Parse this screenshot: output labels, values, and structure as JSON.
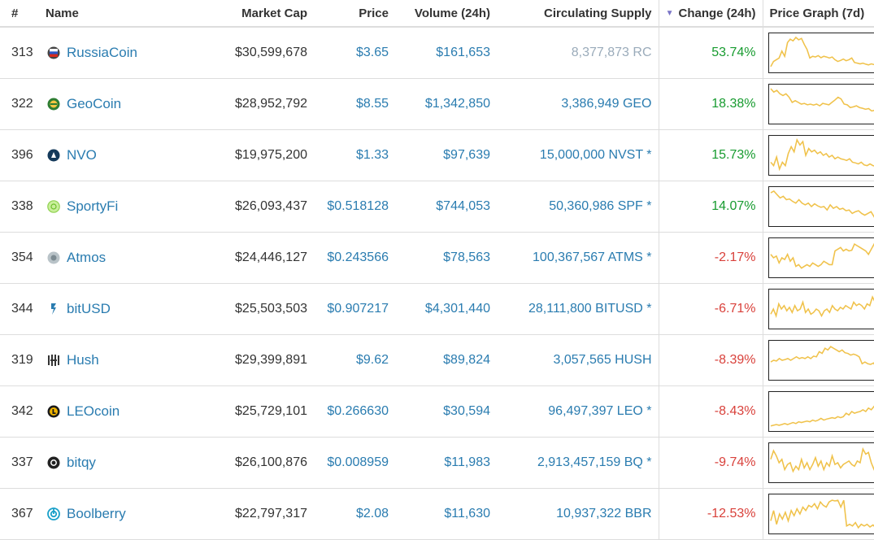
{
  "headers": {
    "rank": "#",
    "name": "Name",
    "market_cap": "Market Cap",
    "price": "Price",
    "volume": "Volume (24h)",
    "supply": "Circulating Supply",
    "change": "Change (24h)",
    "graph": "Price Graph (7d)"
  },
  "colors": {
    "link": "#2a7cb0",
    "positive": "#179b2f",
    "negative": "#d9413b",
    "sparkline": "#f0c24b"
  },
  "rows": [
    {
      "rank": "313",
      "name": "RussiaCoin",
      "icon": "russiacoin-icon",
      "market_cap": "$30,599,678",
      "price": "$3.65",
      "volume": "$161,653",
      "supply": "8,377,873 RC",
      "change": "53.74%",
      "spark": [
        0.1,
        0.25,
        0.3,
        0.35,
        0.55,
        0.4,
        0.8,
        0.9,
        0.85,
        0.95,
        0.88,
        0.92,
        0.75,
        0.6,
        0.35,
        0.4,
        0.38,
        0.42,
        0.36,
        0.4,
        0.38,
        0.35,
        0.38,
        0.3,
        0.25,
        0.28,
        0.32,
        0.27,
        0.3,
        0.35,
        0.22,
        0.2,
        0.18,
        0.2,
        0.17,
        0.15,
        0.18,
        0.16,
        0.15,
        0.17,
        0.14,
        0.15,
        0.13,
        0.15,
        0.17,
        0.2,
        0.3
      ]
    },
    {
      "rank": "322",
      "name": "GeoCoin",
      "icon": "geocoin-icon",
      "market_cap": "$28,952,792",
      "price": "$8.55",
      "volume": "$1,342,850",
      "supply": "3,386,949 GEO",
      "change": "18.38%",
      "spark": [
        0.95,
        0.85,
        0.9,
        0.8,
        0.75,
        0.8,
        0.7,
        0.55,
        0.6,
        0.55,
        0.5,
        0.52,
        0.48,
        0.5,
        0.47,
        0.5,
        0.45,
        0.52,
        0.5,
        0.48,
        0.55,
        0.62,
        0.7,
        0.65,
        0.5,
        0.48,
        0.4,
        0.42,
        0.45,
        0.4,
        0.38,
        0.35,
        0.37,
        0.3,
        0.32,
        0.28,
        0.25,
        0.3,
        0.2,
        0.22,
        0.05,
        0.08,
        0.3
      ]
    },
    {
      "rank": "396",
      "name": "NVO",
      "icon": "nvo-icon",
      "market_cap": "$19,975,200",
      "price": "$1.33",
      "volume": "$97,639",
      "supply": "15,000,000 NVST *",
      "change": "15.73%",
      "spark": [
        0.3,
        0.2,
        0.45,
        0.1,
        0.3,
        0.2,
        0.55,
        0.75,
        0.6,
        0.95,
        0.8,
        0.9,
        0.5,
        0.7,
        0.6,
        0.65,
        0.55,
        0.6,
        0.5,
        0.55,
        0.45,
        0.5,
        0.4,
        0.45,
        0.4,
        0.38,
        0.35,
        0.4,
        0.3,
        0.28,
        0.25,
        0.3,
        0.22,
        0.2,
        0.25,
        0.2,
        0.18,
        0.22,
        0.25,
        0.2,
        0.15,
        0.2,
        0.22,
        0.18,
        0.2
      ]
    },
    {
      "rank": "338",
      "name": "SportyFi",
      "icon": "sportyfi-icon",
      "market_cap": "$26,093,437",
      "price": "$0.518128",
      "volume": "$744,053",
      "supply": "50,360,986 SPF *",
      "change": "14.07%",
      "spark": [
        0.9,
        0.95,
        0.85,
        0.75,
        0.8,
        0.7,
        0.72,
        0.65,
        0.6,
        0.7,
        0.6,
        0.55,
        0.6,
        0.5,
        0.58,
        0.52,
        0.48,
        0.5,
        0.4,
        0.55,
        0.45,
        0.5,
        0.42,
        0.45,
        0.38,
        0.4,
        0.3,
        0.35,
        0.38,
        0.3,
        0.25,
        0.3,
        0.35,
        0.2,
        0.25,
        0.28,
        0.05,
        0.3,
        0.2,
        0.3,
        0.25,
        0.28
      ]
    },
    {
      "rank": "354",
      "name": "Atmos",
      "icon": "atmos-icon",
      "market_cap": "$24,446,127",
      "price": "$0.243566",
      "volume": "$78,563",
      "supply": "100,367,567 ATMS *",
      "change": "-2.17%",
      "spark": [
        0.6,
        0.5,
        0.55,
        0.35,
        0.5,
        0.45,
        0.6,
        0.4,
        0.5,
        0.25,
        0.3,
        0.2,
        0.25,
        0.3,
        0.25,
        0.35,
        0.3,
        0.25,
        0.3,
        0.4,
        0.35,
        0.3,
        0.3,
        0.7,
        0.75,
        0.8,
        0.7,
        0.75,
        0.7,
        0.72,
        0.9,
        0.85,
        0.8,
        0.75,
        0.7,
        0.6,
        0.75,
        0.9,
        0.8,
        0.5,
        0.6,
        0.55,
        0.4,
        0.5,
        0.1,
        0.6,
        0.5
      ]
    },
    {
      "rank": "344",
      "name": "bitUSD",
      "icon": "bitusd-icon",
      "market_cap": "$25,503,503",
      "price": "$0.907217",
      "volume": "$4,301,440",
      "supply": "28,111,800 BITUSD *",
      "change": "-6.71%",
      "spark": [
        0.35,
        0.5,
        0.3,
        0.65,
        0.5,
        0.6,
        0.45,
        0.55,
        0.4,
        0.6,
        0.45,
        0.5,
        0.7,
        0.4,
        0.5,
        0.35,
        0.4,
        0.5,
        0.45,
        0.3,
        0.45,
        0.5,
        0.4,
        0.6,
        0.5,
        0.45,
        0.55,
        0.5,
        0.6,
        0.55,
        0.5,
        0.7,
        0.6,
        0.65,
        0.6,
        0.5,
        0.65,
        0.6,
        0.85,
        0.7,
        0.75,
        0.6,
        0.7,
        0.35,
        0.5,
        0.4,
        0.15,
        0.45,
        0.35
      ]
    },
    {
      "rank": "319",
      "name": "Hush",
      "icon": "hush-icon",
      "market_cap": "$29,399,891",
      "price": "$9.62",
      "volume": "$89,824",
      "supply": "3,057,565 HUSH",
      "change": "-8.39%",
      "spark": [
        0.45,
        0.5,
        0.48,
        0.55,
        0.5,
        0.52,
        0.55,
        0.5,
        0.55,
        0.6,
        0.55,
        0.58,
        0.55,
        0.6,
        0.55,
        0.62,
        0.6,
        0.75,
        0.7,
        0.85,
        0.8,
        0.9,
        0.85,
        0.8,
        0.75,
        0.8,
        0.72,
        0.7,
        0.65,
        0.68,
        0.65,
        0.6,
        0.4,
        0.45,
        0.4,
        0.38,
        0.42,
        0.3,
        0.35,
        0.28,
        0.3,
        0.32,
        0.3,
        0.6,
        0.7,
        0.05
      ]
    },
    {
      "rank": "342",
      "name": "LEOcoin",
      "icon": "leocoin-icon",
      "market_cap": "$25,729,101",
      "price": "$0.266630",
      "volume": "$30,594",
      "supply": "96,497,397 LEO *",
      "change": "-8.43%",
      "spark": [
        0.08,
        0.1,
        0.12,
        0.1,
        0.12,
        0.15,
        0.12,
        0.15,
        0.18,
        0.15,
        0.2,
        0.18,
        0.2,
        0.22,
        0.2,
        0.25,
        0.22,
        0.25,
        0.3,
        0.25,
        0.28,
        0.3,
        0.32,
        0.3,
        0.35,
        0.32,
        0.35,
        0.45,
        0.4,
        0.5,
        0.45,
        0.48,
        0.5,
        0.55,
        0.5,
        0.6,
        0.55,
        0.65,
        0.6,
        0.7,
        0.65,
        0.75,
        0.7,
        0.9,
        0.55,
        0.9,
        0.6
      ]
    },
    {
      "rank": "337",
      "name": "bitqy",
      "icon": "bitqy-icon",
      "market_cap": "$26,100,876",
      "price": "$0.008959",
      "volume": "$11,983",
      "supply": "2,913,457,159 BQ *",
      "change": "-9.74%",
      "spark": [
        0.6,
        0.85,
        0.7,
        0.5,
        0.6,
        0.3,
        0.45,
        0.5,
        0.25,
        0.4,
        0.3,
        0.6,
        0.35,
        0.5,
        0.3,
        0.45,
        0.65,
        0.4,
        0.55,
        0.3,
        0.5,
        0.4,
        0.7,
        0.45,
        0.5,
        0.35,
        0.45,
        0.5,
        0.55,
        0.45,
        0.4,
        0.55,
        0.5,
        0.9,
        0.75,
        0.8,
        0.5,
        0.3,
        0.35,
        0.25,
        0.3,
        0.2,
        0.25,
        0.2,
        0.1,
        0.2,
        0.15
      ]
    },
    {
      "rank": "367",
      "name": "Boolberry",
      "icon": "boolberry-icon",
      "market_cap": "$22,797,317",
      "price": "$2.08",
      "volume": "$11,630",
      "supply": "10,937,322 BBR",
      "change": "-12.53%",
      "spark": [
        0.3,
        0.6,
        0.2,
        0.5,
        0.35,
        0.55,
        0.3,
        0.6,
        0.45,
        0.65,
        0.5,
        0.7,
        0.6,
        0.75,
        0.7,
        0.8,
        0.65,
        0.85,
        0.75,
        0.7,
        0.85,
        0.9,
        0.88,
        0.9,
        0.7,
        0.9,
        0.15,
        0.2,
        0.15,
        0.25,
        0.1,
        0.2,
        0.15,
        0.2,
        0.12,
        0.18,
        0.1,
        0.15,
        0.12,
        0.1,
        0.12,
        0.08,
        0.1,
        0.05,
        0.08
      ]
    }
  ]
}
